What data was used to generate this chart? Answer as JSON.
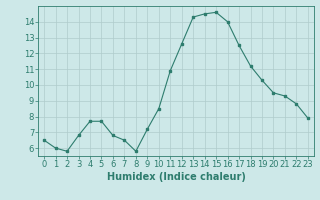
{
  "x": [
    0,
    1,
    2,
    3,
    4,
    5,
    6,
    7,
    8,
    9,
    10,
    11,
    12,
    13,
    14,
    15,
    16,
    17,
    18,
    19,
    20,
    21,
    22,
    23
  ],
  "y": [
    6.5,
    6.0,
    5.8,
    6.8,
    7.7,
    7.7,
    6.8,
    6.5,
    5.8,
    7.2,
    8.5,
    10.9,
    12.6,
    14.3,
    14.5,
    14.6,
    14.0,
    12.5,
    11.2,
    10.3,
    9.5,
    9.3,
    8.8,
    7.9
  ],
  "line_color": "#2e7d6e",
  "marker": "s",
  "marker_size": 2,
  "bg_color": "#cde8e8",
  "grid_color": "#b0cccc",
  "xlabel": "Humidex (Indice chaleur)",
  "xlim": [
    -0.5,
    23.5
  ],
  "ylim": [
    5.5,
    15.0
  ],
  "yticks": [
    6,
    7,
    8,
    9,
    10,
    11,
    12,
    13,
    14
  ],
  "xticks": [
    0,
    1,
    2,
    3,
    4,
    5,
    6,
    7,
    8,
    9,
    10,
    11,
    12,
    13,
    14,
    15,
    16,
    17,
    18,
    19,
    20,
    21,
    22,
    23
  ],
  "tick_fontsize": 6,
  "xlabel_fontsize": 7,
  "spine_color": "#2e7d6e"
}
